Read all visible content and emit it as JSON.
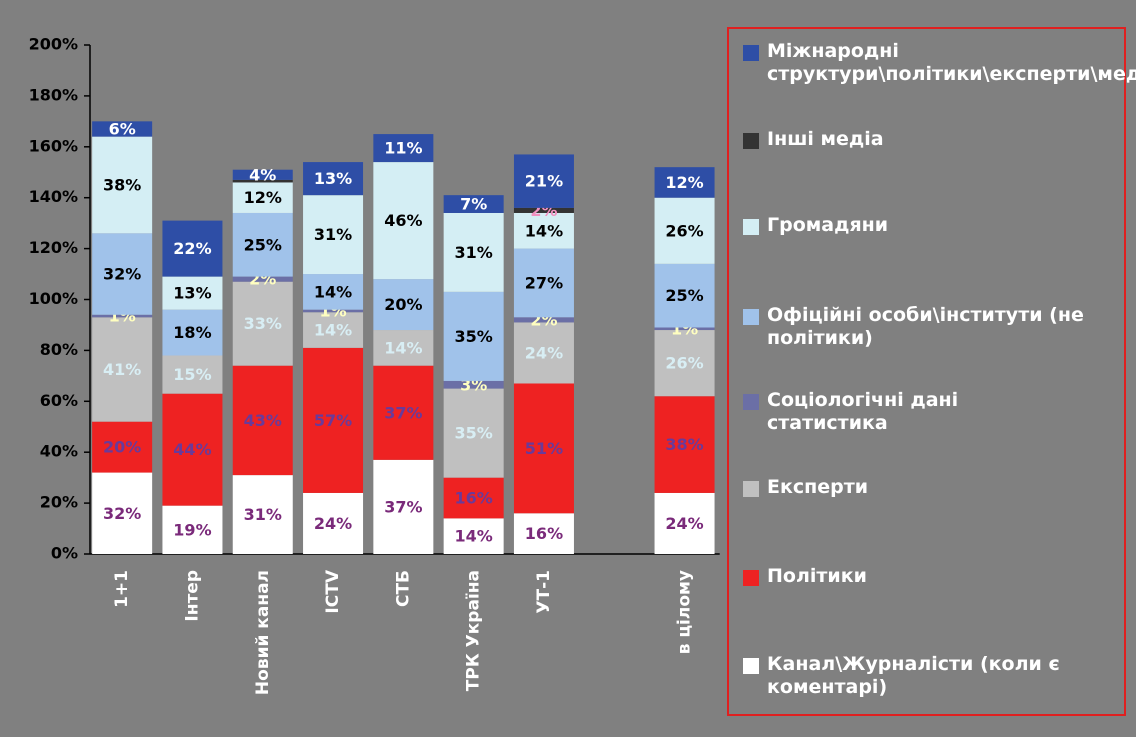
{
  "chart_data": {
    "type": "stacked_bar",
    "categories": [
      "1+1",
      "Інтер",
      "Новий канал",
      "ICTV",
      "СТБ",
      "ТРК Україна",
      "УТ-1",
      null,
      "в цілому"
    ],
    "ylim": [
      0,
      200
    ],
    "yticks": [
      {
        "value": 0,
        "label": "0%"
      },
      {
        "value": 20,
        "label": "20%"
      },
      {
        "value": 40,
        "label": "40%"
      },
      {
        "value": 60,
        "label": "60%"
      },
      {
        "value": 80,
        "label": "80%"
      },
      {
        "value": 100,
        "label": "100%"
      },
      {
        "value": 120,
        "label": "120%"
      },
      {
        "value": 140,
        "label": "140%"
      },
      {
        "value": 160,
        "label": "160%"
      },
      {
        "value": 180,
        "label": "180%"
      },
      {
        "value": 200,
        "label": "200%"
      }
    ],
    "series": [
      {
        "name": "Канал\\Журналісти (коли є коментарі)",
        "color": "#ffffff",
        "label_color": "#7a2a7a",
        "values": [
          32,
          19,
          31,
          24,
          37,
          14,
          16,
          null,
          24
        ],
        "value_labels": [
          "32%",
          "19%",
          "31%",
          "24%",
          "37%",
          "14%",
          "16%",
          null,
          "24%"
        ]
      },
      {
        "name": "Політики",
        "color": "#ee2222",
        "label_color": "#6a3a9a",
        "values": [
          20,
          44,
          43,
          57,
          37,
          16,
          51,
          null,
          38
        ],
        "value_labels": [
          "20%",
          "44%",
          "43%",
          "57%",
          "37%",
          "16%",
          "51%",
          null,
          "38%"
        ]
      },
      {
        "name": "Експерти",
        "color": "#c0c0c0",
        "label_color": "#d8eef4",
        "values": [
          41,
          15,
          33,
          14,
          14,
          35,
          24,
          null,
          26
        ],
        "value_labels": [
          "41%",
          "15%",
          "33%",
          "14%",
          "14%",
          "35%",
          "24%",
          null,
          "26%"
        ]
      },
      {
        "name": "Соціологічні дані статистика",
        "color": "#6b6fa6",
        "label_color": "#ffffc0",
        "values": [
          1,
          null,
          2,
          1,
          null,
          3,
          2,
          null,
          1
        ],
        "value_labels": [
          "1%",
          null,
          "2%",
          "1%",
          null,
          "3%",
          "2%",
          null,
          "1%"
        ]
      },
      {
        "name": "Офіційні особи\\інститути (не політики)",
        "color": "#a0c2ea",
        "label_color": "#000000",
        "values": [
          32,
          18,
          25,
          14,
          20,
          35,
          27,
          null,
          25
        ],
        "value_labels": [
          "32%",
          "18%",
          "25%",
          "14%",
          "20%",
          "35%",
          "27%",
          null,
          "25%"
        ]
      },
      {
        "name": "Громадяни",
        "color": "#d4eef4",
        "label_color": "#000000",
        "values": [
          38,
          13,
          12,
          31,
          46,
          31,
          14,
          null,
          26
        ],
        "value_labels": [
          "38%",
          "13%",
          "12%",
          "31%",
          "46%",
          "31%",
          "14%",
          null,
          "26%"
        ]
      },
      {
        "name": "Інші медіа",
        "color": "#333333",
        "label_color": "#f090c0",
        "values": [
          null,
          null,
          1,
          null,
          null,
          null,
          2,
          null,
          null
        ],
        "value_labels": [
          null,
          null,
          null,
          null,
          null,
          null,
          "2%",
          null,
          null
        ]
      },
      {
        "name": "Міжнародні структури\\політики\\експерти\\медіа",
        "color": "#2e4ea6",
        "label_color": "#ffffff",
        "values": [
          6,
          22,
          4,
          13,
          11,
          7,
          21,
          null,
          12
        ],
        "value_labels": [
          "6%",
          "22%",
          "4%",
          "13%",
          "11%",
          "7%",
          "21%",
          null,
          "12%"
        ]
      }
    ]
  }
}
